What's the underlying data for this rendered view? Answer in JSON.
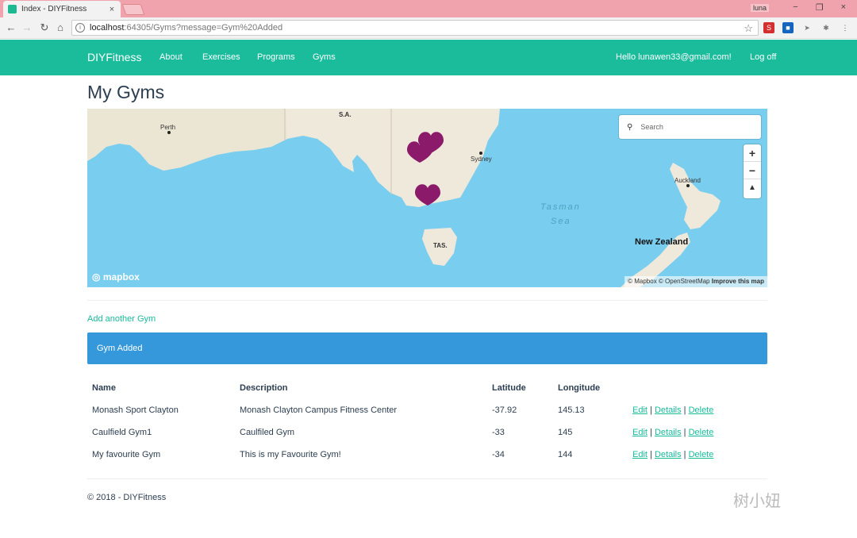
{
  "browser": {
    "tab_title": "Index - DIYFitness",
    "tab_close": "×",
    "user_badge": "luna",
    "window_controls": [
      "−",
      "❐",
      "×"
    ],
    "url_host": "localhost",
    "url_path": ":64305/Gyms?message=Gym%20Added",
    "nav_icons": [
      "back-icon",
      "forward-icon",
      "reload-icon",
      "home-icon"
    ]
  },
  "navbar": {
    "brand": "DIYFitness",
    "links": [
      "About",
      "Exercises",
      "Programs",
      "Gyms"
    ],
    "greeting": "Hello lunawen33@gmail.com!",
    "logout": "Log off"
  },
  "page": {
    "title": "My Gyms",
    "add_link": "Add another Gym",
    "alert": "Gym Added",
    "footer": "© 2018 - DIYFitness"
  },
  "map": {
    "search_placeholder": "Search",
    "zoom_in": "+",
    "zoom_out": "−",
    "compass": "▲",
    "logo": "mapbox",
    "attribution": "© Mapbox © OpenStreetMap",
    "attribution_link": "Improve this map",
    "place_labels": {
      "perth": "Perth",
      "sa": "S.A.",
      "sydney": "Sydney",
      "auckland": "Auckland",
      "tas": "TAS.",
      "tasman1": "Tasman",
      "tasman2": "Sea",
      "nz": "New Zealand"
    },
    "marker_color": "#8b1a6b"
  },
  "table": {
    "headers": [
      "Name",
      "Description",
      "Latitude",
      "Longitude",
      ""
    ],
    "rows": [
      {
        "name": "Monash Sport Clayton",
        "description": "Monash Clayton Campus Fitness Center",
        "latitude": "-37.92",
        "longitude": "145.13"
      },
      {
        "name": "Caulfield Gym1",
        "description": "Caulfiled Gym",
        "latitude": "-33",
        "longitude": "145"
      },
      {
        "name": "My favourite Gym",
        "description": "This is my Favourite Gym!",
        "latitude": "-34",
        "longitude": "144"
      }
    ],
    "actions": {
      "edit": "Edit",
      "details": "Details",
      "delete": "Delete",
      "sep": "|"
    }
  },
  "watermark": "树小妞",
  "colors": {
    "accent": "#1abc9c",
    "alert": "#3498db",
    "text": "#2c3e50"
  }
}
